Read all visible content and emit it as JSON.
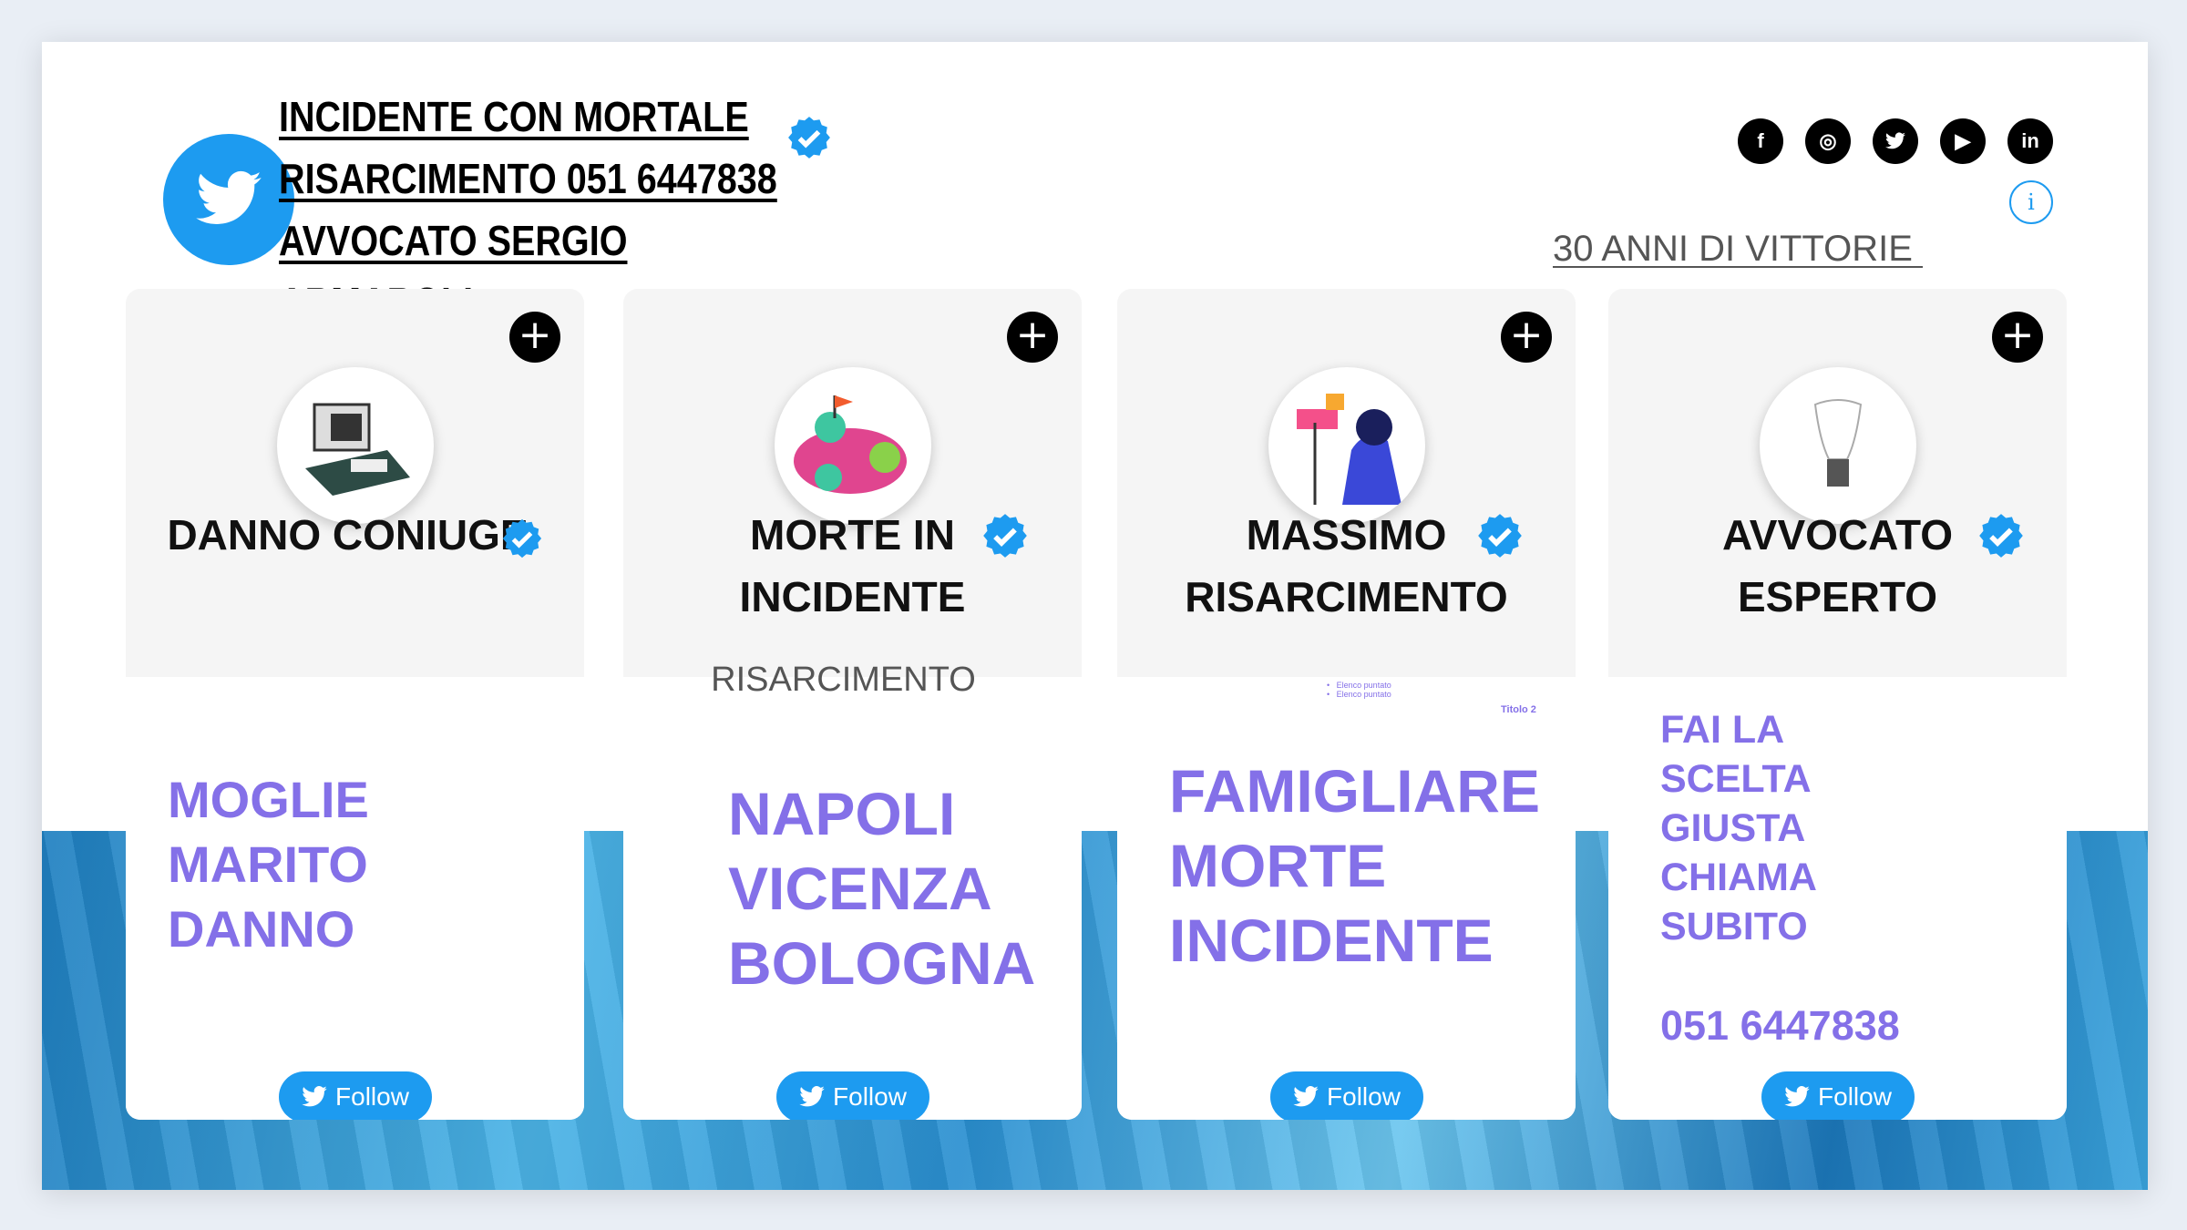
{
  "header": {
    "title_lines": [
      "INCIDENTE CON MORTALE",
      "RISARCIMENTO  051 6447838",
      "AVVOCATO SERGIO",
      "ARMAROLI"
    ],
    "tagline": "30 ANNI DI VITTORIE ",
    "social_icons": [
      "facebook-icon",
      "instagram-icon",
      "twitter-icon",
      "youtube-icon",
      "linkedin-icon"
    ],
    "social_labels": {
      "facebook": "f",
      "instagram": "◎",
      "twitter": "🐦",
      "youtube": "▶",
      "linkedin": "in"
    },
    "info_label": "i"
  },
  "colors": {
    "twitter_blue": "#1d9bf0",
    "purple": "#8470e8"
  },
  "cards": [
    {
      "name_lines": [
        "DANNO CONIUGE"
      ],
      "body_lines": [
        "MOGLIE",
        "MARITO",
        "DANNO"
      ],
      "follow": "Follow"
    },
    {
      "name_lines": [
        "MORTE IN",
        "INCIDENTE"
      ],
      "subtitle": "RISARCIMENTO",
      "body_lines": [
        "NAPOLI",
        "VICENZA",
        "BOLOGNA"
      ],
      "follow": "Follow"
    },
    {
      "name_lines": [
        "MASSIMO",
        "RISARCIMENTO"
      ],
      "placeholder_bullets": [
        "Elenco puntato",
        "Elenco puntato"
      ],
      "placeholder_title": "Titolo 2",
      "body_lines": [
        "FAMIGLIARE",
        "MORTE",
        "INCIDENTE"
      ],
      "follow": "Follow"
    },
    {
      "name_lines": [
        "AVVOCATO",
        "ESPERTO"
      ],
      "body_lines": [
        "FAI LA",
        "SCELTA",
        "GIUSTA",
        "CHIAMA",
        "SUBITO"
      ],
      "phone": "051 6447838",
      "follow": "Follow"
    }
  ],
  "plus_label": "+"
}
